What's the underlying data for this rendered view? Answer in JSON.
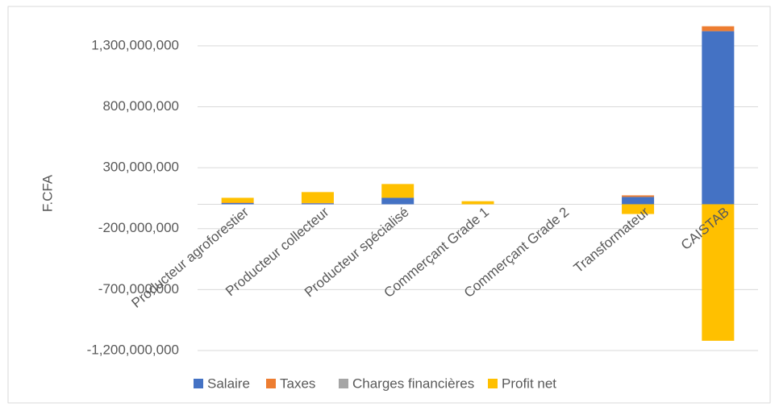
{
  "chart_data": {
    "type": "bar",
    "stacked": true,
    "y_label": "F.CFA",
    "categories": [
      "Producteur agroforestier",
      "Producteur collecteur",
      "Producteur spécialisé",
      "Commerçant Grade 1",
      "Commerçant Grade 2",
      "Transformateur",
      "CAISTAB"
    ],
    "series": [
      {
        "name": "Salaire",
        "color": "#4472c4",
        "values": [
          10000000,
          8000000,
          53000000,
          0,
          0,
          60000000,
          1420000000
        ]
      },
      {
        "name": "Taxes",
        "color": "#ed7d31",
        "values": [
          3000000,
          2000000,
          0,
          0,
          0,
          13000000,
          40000000
        ]
      },
      {
        "name": "Charges financières",
        "color": "#a5a5a5",
        "values": [
          0,
          0,
          0,
          0,
          0,
          0,
          0
        ]
      },
      {
        "name": "Profit net",
        "color": "#ffc000",
        "values": [
          40000000,
          90000000,
          113000000,
          25000000,
          0,
          -80000000,
          -1120000000
        ]
      }
    ],
    "ylim": [
      -1200000000,
      1550000000
    ],
    "yticks": [
      {
        "value": -1200000000,
        "label": "-1,200,000,000"
      },
      {
        "value": -700000000,
        "label": "-700,000,000"
      },
      {
        "value": -200000000,
        "label": "-200,000,000"
      },
      {
        "value": 300000000,
        "label": "300,000,000"
      },
      {
        "value": 800000000,
        "label": "800,000,000"
      },
      {
        "value": 1300000000,
        "label": "1,300,000,000"
      }
    ],
    "grid": true,
    "legend": "bottom"
  }
}
